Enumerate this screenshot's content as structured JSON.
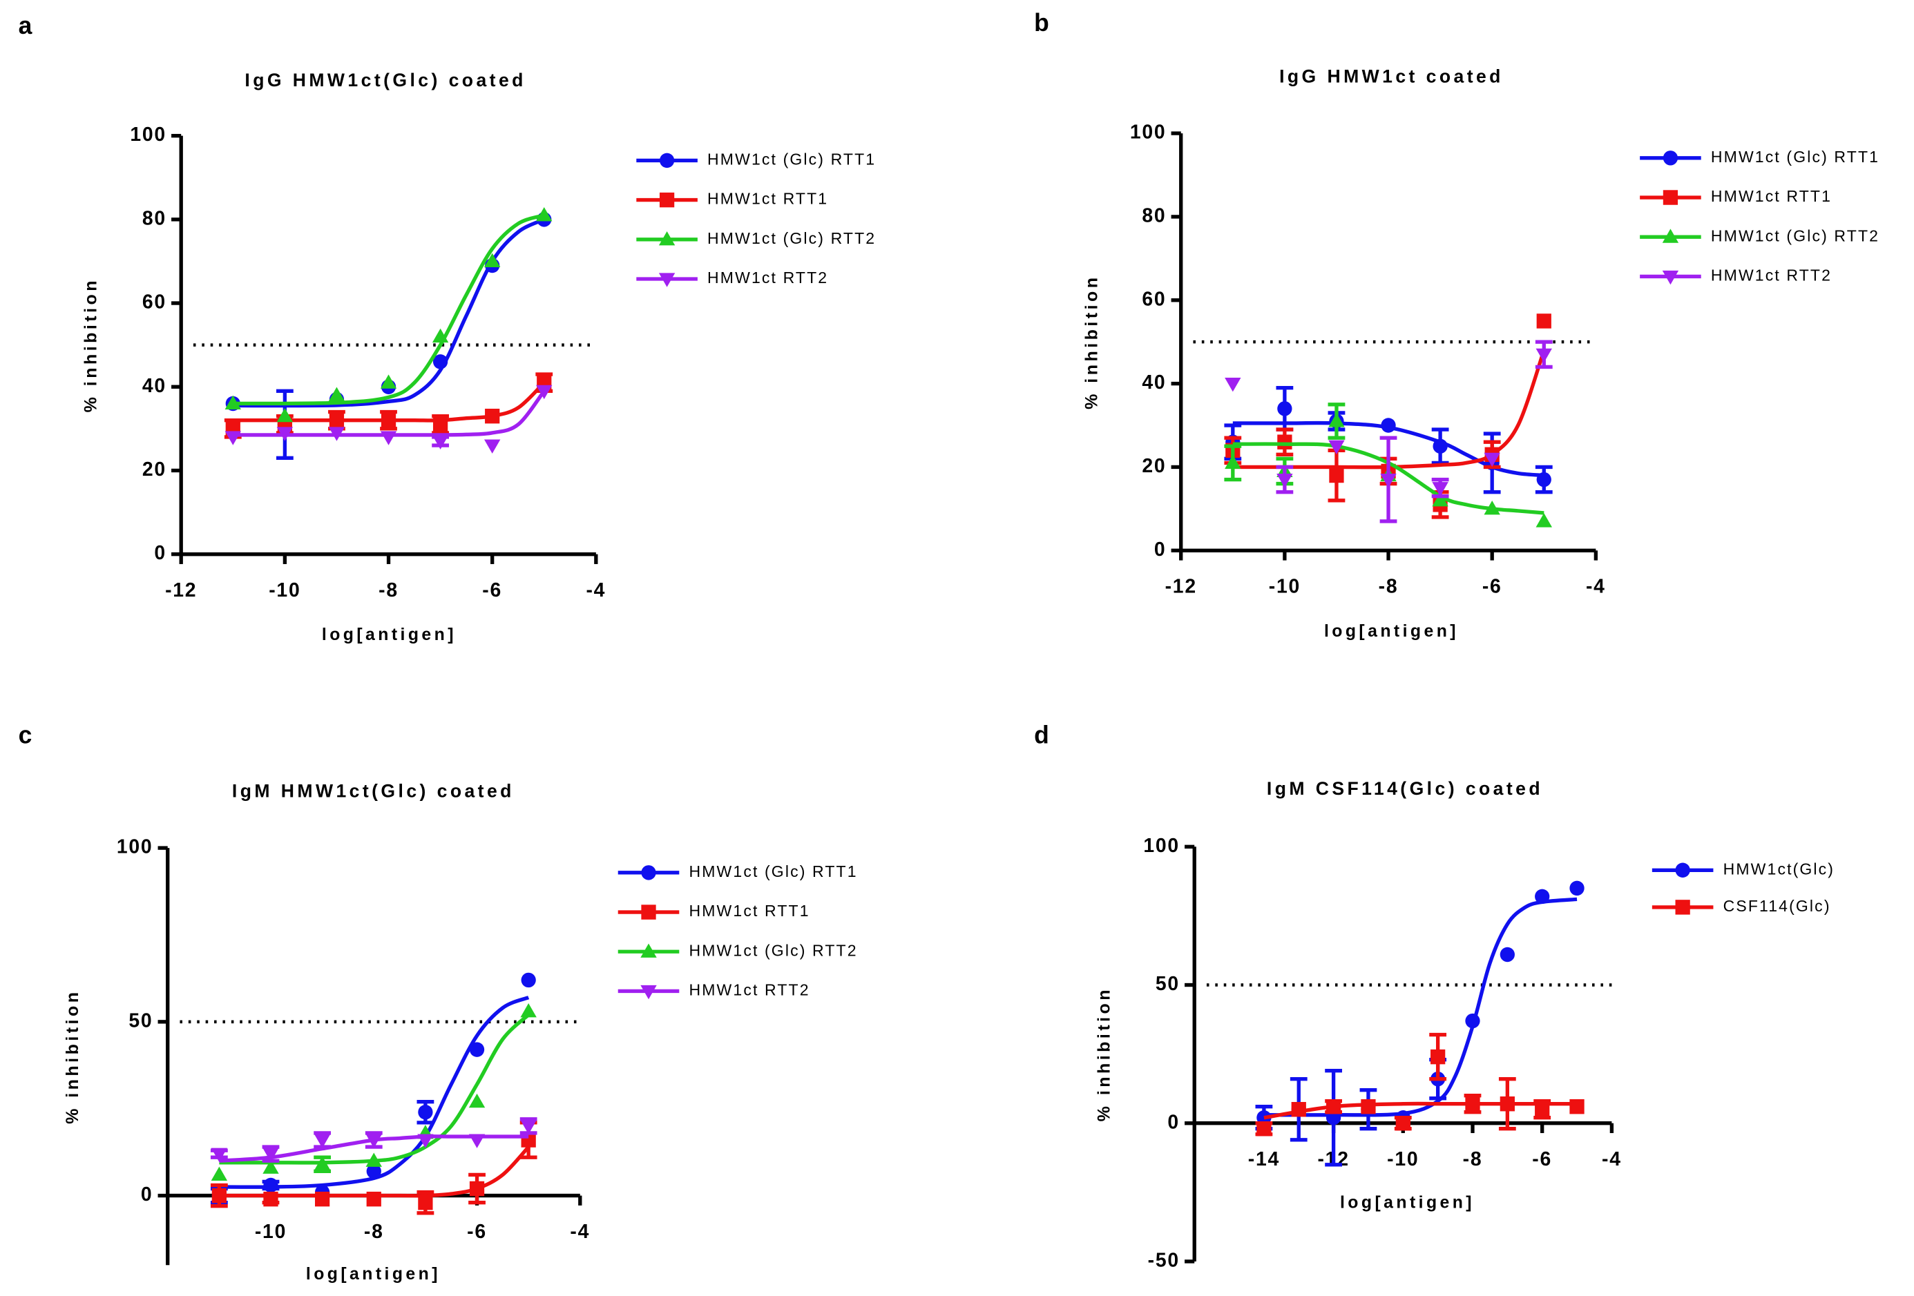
{
  "chart_data": [
    {
      "type": "scatter",
      "label": "a",
      "title": "IgG HMW1ct(Glc) coated",
      "x_label": "log[antigen]",
      "y_label": "% inhibition",
      "xlim": [
        -12,
        -4
      ],
      "ylim": [
        0,
        100
      ],
      "xticks": [
        -12,
        -10,
        -8,
        -6,
        -4
      ],
      "yticks": [
        0,
        20,
        40,
        60,
        80,
        100
      ],
      "reference_line": 50,
      "fit_x": [
        -11,
        -9,
        -8,
        -7.5,
        -7,
        -6.5,
        -6,
        -5.5,
        -5
      ],
      "series": [
        {
          "name": "HMW1ct (Glc) RTT1",
          "color": "#1010ee",
          "marker": "circle",
          "x": [
            -11,
            -10,
            -9,
            -8,
            -7,
            -6,
            -5
          ],
          "values": [
            36,
            31,
            37,
            40,
            46,
            69,
            80
          ],
          "errors": [
            null,
            8,
            null,
            null,
            null,
            null,
            null
          ],
          "fit": [
            35.5,
            35.6,
            36.5,
            38,
            44,
            57,
            70,
            77,
            80
          ]
        },
        {
          "name": "HMW1ct RTT1",
          "color": "#ee1010",
          "marker": "square",
          "x": [
            -11,
            -10,
            -9,
            -8,
            -7,
            -6,
            -5
          ],
          "values": [
            30,
            31,
            32,
            32,
            31,
            33,
            41
          ],
          "errors": [
            2,
            2,
            2,
            2,
            2,
            null,
            2
          ],
          "fit": [
            32,
            32,
            32,
            32,
            32,
            32.5,
            33,
            35,
            41
          ]
        },
        {
          "name": "HMW1ct (Glc) RTT2",
          "color": "#22cc22",
          "marker": "triangle-up",
          "x": [
            -11,
            -10,
            -9,
            -8,
            -7,
            -6,
            -5
          ],
          "values": [
            36,
            33,
            38,
            41,
            52,
            70,
            81
          ],
          "errors": [
            null,
            null,
            null,
            null,
            null,
            null,
            null
          ],
          "fit": [
            36,
            36.2,
            37.5,
            41,
            50,
            62,
            73,
            79,
            81
          ]
        },
        {
          "name": "HMW1ct RTT2",
          "color": "#a020f0",
          "marker": "triangle-down",
          "x": [
            -11,
            -10,
            -9,
            -8,
            -7,
            -6,
            -5
          ],
          "values": [
            28,
            29,
            29,
            28,
            27,
            26,
            39
          ],
          "errors": [
            null,
            null,
            null,
            null,
            1,
            null,
            null
          ],
          "fit": [
            28.5,
            28.5,
            28.5,
            28.5,
            28.5,
            28.6,
            29,
            31,
            39
          ]
        }
      ]
    },
    {
      "type": "scatter",
      "label": "b",
      "title": "IgG HMW1ct coated",
      "x_label": "log[antigen]",
      "y_label": "% inhibition",
      "xlim": [
        -12,
        -4
      ],
      "ylim": [
        0,
        100
      ],
      "xticks": [
        -12,
        -10,
        -8,
        -6,
        -4
      ],
      "yticks": [
        0,
        20,
        40,
        60,
        80,
        100
      ],
      "reference_line": 50,
      "fit_x": [
        -11,
        -10,
        -9,
        -8,
        -7,
        -6.5,
        -6,
        -5.5,
        -5
      ],
      "series": [
        {
          "name": "HMW1ct (Glc) RTT1",
          "color": "#1010ee",
          "marker": "circle",
          "x": [
            -11,
            -10,
            -9,
            -8,
            -7,
            -6,
            -5
          ],
          "values": [
            26,
            34,
            31,
            30,
            25,
            21,
            17
          ],
          "errors": [
            4,
            5,
            2,
            null,
            4,
            7,
            3
          ],
          "fit": [
            30.5,
            30.5,
            30.5,
            29.5,
            26,
            23,
            20,
            18.5,
            18
          ]
        },
        {
          "name": "HMW1ct RTT1",
          "color": "#ee1010",
          "marker": "square",
          "x": [
            -11,
            -10,
            -9,
            -8,
            -7,
            -6,
            -5
          ],
          "values": [
            24,
            26,
            18,
            19,
            11,
            23,
            55
          ],
          "errors": [
            3,
            3,
            6,
            3,
            3,
            3,
            null
          ],
          "fit": [
            20,
            20,
            20,
            20,
            20.5,
            21,
            23,
            30,
            48
          ]
        },
        {
          "name": "HMW1ct (Glc) RTT2",
          "color": "#22cc22",
          "marker": "triangle-up",
          "x": [
            -11,
            -10,
            -9,
            -8,
            -7,
            -6,
            -5
          ],
          "values": [
            21,
            19,
            31,
            18,
            12,
            10,
            7
          ],
          "errors": [
            4,
            3,
            4,
            null,
            null,
            null,
            null
          ],
          "fit": [
            25.5,
            25.5,
            25,
            21,
            13,
            11,
            10,
            9.5,
            9
          ]
        },
        {
          "name": "HMW1ct RTT2",
          "color": "#a020f0",
          "marker": "triangle-down",
          "x": [
            -11,
            -10,
            -9,
            -8,
            -7,
            -6,
            -5
          ],
          "values": [
            40,
            17,
            25,
            17,
            15,
            22,
            47
          ],
          "errors": [
            null,
            3,
            null,
            10,
            2,
            null,
            3
          ]
        }
      ]
    },
    {
      "type": "scatter",
      "label": "c",
      "title": "IgM HMW1ct(Glc) coated",
      "x_label": "log[antigen]",
      "y_label": "% inhibition",
      "xlim": [
        -12,
        -4
      ],
      "ylim": [
        -20,
        100
      ],
      "xticks": [
        -10,
        -8,
        -6,
        -4
      ],
      "yticks": [
        0,
        50,
        100
      ],
      "reference_line": 50,
      "fit_x": [
        -11,
        -10,
        -9,
        -8,
        -7.5,
        -7,
        -6.5,
        -6,
        -5.5,
        -5
      ],
      "series": [
        {
          "name": "HMW1ct (Glc) RTT1",
          "color": "#1010ee",
          "marker": "circle",
          "x": [
            -11,
            -10,
            -9,
            -8,
            -7,
            -6,
            -5
          ],
          "values": [
            0,
            3,
            1,
            7,
            24,
            42,
            62
          ],
          "errors": [
            2,
            1,
            null,
            null,
            3,
            null,
            null
          ],
          "fit": [
            2.5,
            2.5,
            3,
            5,
            9,
            17,
            32,
            46,
            54,
            57
          ]
        },
        {
          "name": "HMW1ct RTT1",
          "color": "#ee1010",
          "marker": "square",
          "x": [
            -11,
            -10,
            -9,
            -8,
            -7,
            -6,
            -5
          ],
          "values": [
            0,
            -1,
            -1,
            -1,
            -2,
            2,
            16
          ],
          "errors": [
            3,
            1,
            null,
            null,
            3,
            4,
            5
          ],
          "fit": [
            0,
            0,
            0,
            0,
            0,
            0,
            0.5,
            2,
            6,
            14
          ]
        },
        {
          "name": "HMW1ct (Glc) RTT2",
          "color": "#22cc22",
          "marker": "triangle-up",
          "x": [
            -11,
            -10,
            -9,
            -8,
            -7,
            -6,
            -5
          ],
          "values": [
            6,
            8,
            9,
            10,
            18,
            27,
            53
          ],
          "errors": [
            null,
            null,
            2,
            null,
            null,
            null,
            null
          ],
          "fit": [
            9.5,
            9.5,
            9.5,
            10,
            11,
            14,
            20,
            32,
            45,
            52
          ]
        },
        {
          "name": "HMW1ct RTT2",
          "color": "#a020f0",
          "marker": "triangle-down",
          "x": [
            -11,
            -10,
            -9,
            -8,
            -7,
            -6,
            -5
          ],
          "values": [
            12,
            12,
            16,
            16,
            16,
            16,
            20
          ],
          "errors": [
            1,
            2,
            2,
            2,
            null,
            null,
            2
          ],
          "fit": [
            10,
            11,
            13.5,
            16,
            16.5,
            17,
            17,
            17,
            17,
            17
          ]
        }
      ]
    },
    {
      "type": "scatter",
      "label": "d",
      "title": "IgM CSF114(Glc) coated",
      "x_label": "log[antigen]",
      "y_label": "% inhibition",
      "xlim": [
        -16,
        -4
      ],
      "ylim": [
        -50,
        100
      ],
      "xticks": [
        -14,
        -12,
        -10,
        -8,
        -6,
        -4
      ],
      "yticks": [
        -50,
        0,
        50,
        100
      ],
      "reference_line": 50,
      "fit_x": [
        -14,
        -12,
        -10,
        -9,
        -8.5,
        -8,
        -7.5,
        -7,
        -6.5,
        -6,
        -5
      ],
      "series": [
        {
          "name": "HMW1ct(Glc)",
          "color": "#1010ee",
          "marker": "circle",
          "x": [
            -14,
            -13,
            -12,
            -11,
            -10,
            -9,
            -8,
            -7,
            -6,
            -5
          ],
          "values": [
            2,
            5,
            2,
            5,
            2,
            16,
            37,
            61,
            82,
            85
          ],
          "errors": [
            4,
            11,
            17,
            7,
            null,
            7,
            null,
            null,
            null,
            null
          ],
          "fit": [
            3,
            3,
            3.5,
            8,
            17,
            35,
            58,
            72,
            78,
            80,
            81
          ]
        },
        {
          "name": "CSF114(Glc)",
          "color": "#ee1010",
          "marker": "square",
          "x": [
            -14,
            -13,
            -12,
            -11,
            -10,
            -9,
            -8,
            -7,
            -6,
            -5
          ],
          "values": [
            -2,
            5,
            6,
            6,
            0,
            24,
            7,
            7,
            5,
            6
          ],
          "errors": [
            2,
            null,
            2,
            null,
            2,
            8,
            3,
            9,
            3,
            null
          ],
          "fit": [
            2,
            6,
            7,
            7,
            7,
            7,
            7,
            7,
            7,
            7,
            7
          ]
        }
      ]
    }
  ]
}
